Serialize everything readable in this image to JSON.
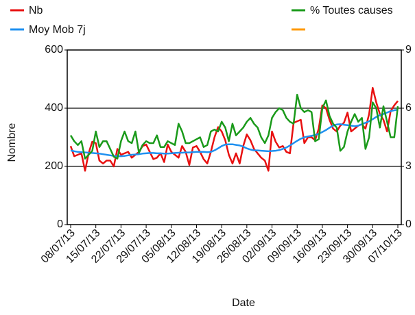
{
  "chart_data": {
    "type": "line",
    "xlabel": "Date",
    "ylabel": "Nombre",
    "categories": [
      "08/07/13",
      null,
      null,
      null,
      null,
      null,
      null,
      "15/07/13",
      null,
      null,
      null,
      null,
      null,
      null,
      "22/07/13",
      null,
      null,
      null,
      null,
      null,
      null,
      "29/07/13",
      null,
      null,
      null,
      null,
      null,
      null,
      "05/08/13",
      null,
      null,
      null,
      null,
      null,
      null,
      "12/08/13",
      null,
      null,
      null,
      null,
      null,
      null,
      "19/08/13",
      null,
      null,
      null,
      null,
      null,
      null,
      "26/08/13",
      null,
      null,
      null,
      null,
      null,
      null,
      "02/09/13",
      null,
      null,
      null,
      null,
      null,
      null,
      "09/09/13",
      null,
      null,
      null,
      null,
      null,
      null,
      "16/09/13",
      null,
      null,
      null,
      null,
      null,
      null,
      "23/09/13",
      null,
      null,
      null,
      null,
      null,
      null,
      "30/09/13",
      null,
      null,
      null,
      null,
      null,
      null,
      "07/10/13"
    ],
    "ylim": [
      0,
      600
    ],
    "yticks": [
      0,
      200,
      400,
      600
    ],
    "y2lim": [
      0,
      9
    ],
    "y2ticks": [
      0,
      3,
      6,
      9
    ],
    "grid": true,
    "series": [
      {
        "name": "Nb",
        "color": "#e81010",
        "values": [
          270,
          235,
          240,
          245,
          185,
          245,
          285,
          280,
          220,
          210,
          220,
          220,
          200,
          260,
          240,
          245,
          250,
          230,
          240,
          250,
          270,
          275,
          250,
          225,
          230,
          245,
          215,
          275,
          250,
          240,
          230,
          270,
          250,
          205,
          265,
          270,
          250,
          225,
          210,
          250,
          300,
          335,
          320,
          290,
          240,
          210,
          245,
          210,
          270,
          310,
          290,
          260,
          245,
          230,
          220,
          185,
          320,
          285,
          265,
          270,
          250,
          245,
          350,
          355,
          360,
          280,
          300,
          300,
          290,
          330,
          410,
          400,
          360,
          330,
          320,
          340,
          350,
          385,
          320,
          330,
          340,
          345,
          330,
          380,
          470,
          420,
          380,
          360,
          320,
          390,
          410,
          425
        ]
      },
      {
        "name": "Moy Mob 7j",
        "color": "#1e90f0",
        "values": [
          255,
          252,
          250,
          249,
          248,
          247,
          246,
          245,
          244,
          242,
          240,
          238,
          236,
          235,
          235,
          236,
          238,
          240,
          241,
          242,
          244,
          245,
          246,
          246,
          245,
          245,
          244,
          244,
          245,
          246,
          247,
          247,
          248,
          248,
          249,
          250,
          250,
          250,
          249,
          250,
          255,
          262,
          270,
          275,
          276,
          276,
          274,
          272,
          268,
          262,
          258,
          255,
          255,
          254,
          253,
          252,
          253,
          254,
          256,
          260,
          265,
          272,
          280,
          288,
          295,
          300,
          303,
          305,
          308,
          312,
          318,
          325,
          333,
          340,
          344,
          345,
          343,
          342,
          340,
          338,
          340,
          345,
          350,
          355,
          362,
          370,
          376,
          380,
          385,
          390,
          393,
          395
        ]
      },
      {
        "name": "% Toutes causes",
        "color": "#1a9a1a",
        "axis": "y2",
        "values": [
          4.6,
          4.3,
          4.1,
          4.3,
          3.4,
          3.6,
          3.8,
          4.8,
          4.0,
          4.3,
          4.3,
          3.9,
          3.5,
          3.4,
          4.3,
          4.8,
          4.3,
          4.2,
          4.8,
          3.7,
          4.1,
          4.3,
          4.2,
          4.2,
          4.6,
          4.0,
          4.0,
          4.3,
          4.2,
          4.1,
          5.2,
          4.8,
          4.2,
          4.2,
          4.3,
          4.4,
          4.5,
          4.0,
          4.1,
          4.8,
          4.9,
          4.8,
          5.3,
          5.0,
          4.3,
          5.2,
          4.6,
          4.8,
          5.0,
          5.3,
          5.5,
          5.2,
          5.0,
          4.5,
          4.2,
          4.6,
          5.5,
          5.8,
          6.0,
          5.9,
          5.5,
          5.3,
          5.2,
          6.7,
          6.0,
          5.8,
          5.9,
          5.8,
          4.3,
          4.4,
          6.0,
          6.4,
          5.6,
          5.2,
          5.0,
          3.8,
          4.0,
          4.8,
          5.3,
          5.7,
          5.3,
          5.5,
          3.9,
          4.5,
          6.3,
          6.0,
          5.0,
          6.1,
          5.3,
          4.5,
          4.5,
          6.1
        ]
      },
      {
        "name": null,
        "color": "#ff9900",
        "axis": "y2",
        "values": [
          null,
          null,
          null,
          null,
          null,
          null,
          null,
          null,
          null,
          null,
          null,
          null,
          null,
          null,
          null,
          null,
          null,
          null,
          null,
          null,
          null,
          null,
          null,
          null,
          null,
          null,
          null,
          null,
          null,
          null,
          null,
          null,
          null,
          null,
          null,
          null,
          null,
          null,
          null,
          null,
          null,
          null,
          null,
          null,
          null,
          null,
          null,
          null,
          null,
          null,
          null,
          null,
          null,
          null,
          null,
          null,
          null,
          null,
          null,
          null,
          null,
          null,
          null,
          null,
          null,
          null,
          null,
          null,
          null,
          null,
          null,
          null,
          null,
          null,
          null,
          null,
          null,
          null,
          null,
          null,
          null,
          null,
          null,
          null,
          null,
          null,
          null,
          null,
          null,
          null,
          null,
          null
        ]
      }
    ]
  }
}
